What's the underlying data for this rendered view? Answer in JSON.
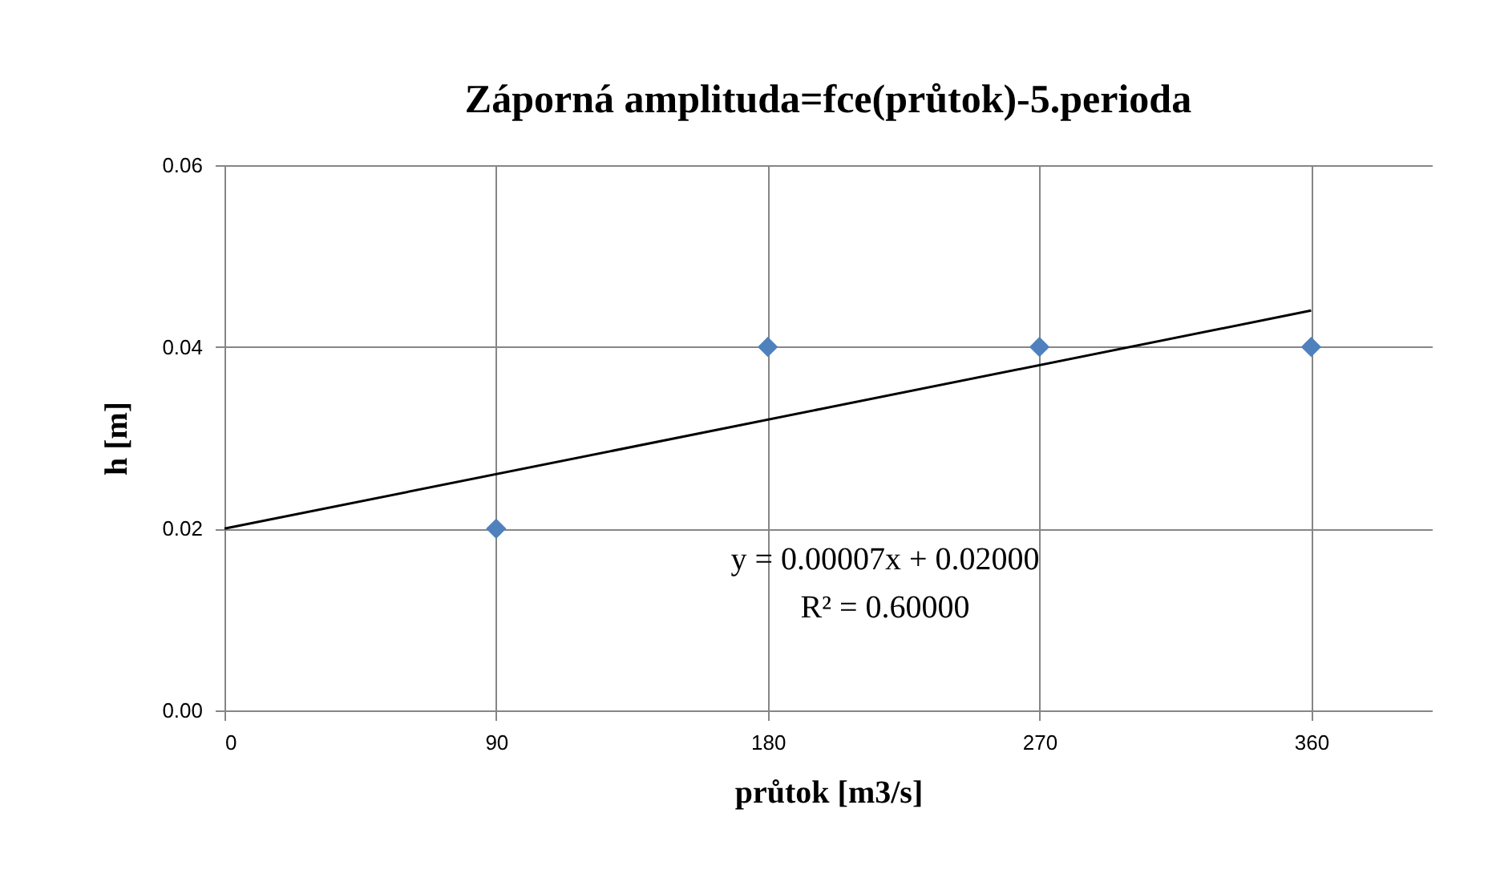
{
  "chart_data": {
    "type": "scatter",
    "title": "Záporná amplituda=fce(průtok)-5.perioda",
    "xlabel": "průtok [m3/s]",
    "ylabel": "h [m]",
    "xlim": [
      0,
      400
    ],
    "xticks": [
      0,
      90,
      180,
      270,
      360
    ],
    "ylim": [
      0,
      0.06
    ],
    "yticks": [
      {
        "value": 0,
        "label": "0.00"
      },
      {
        "value": 0.02,
        "label": "0.02"
      },
      {
        "value": 0.04,
        "label": "0.04"
      },
      {
        "value": 0.06,
        "label": "0.06"
      }
    ],
    "grid": true,
    "series": [
      {
        "marker": "diamond",
        "color": "#4f81bd",
        "x": [
          90,
          180,
          270,
          360
        ],
        "values": [
          0.02,
          0.04,
          0.04,
          0.04
        ]
      },
      {
        "type": "line",
        "marker": "none",
        "color": "#000000",
        "x": [
          0,
          360
        ],
        "values": [
          0.02,
          0.044
        ]
      }
    ],
    "annotations": [
      "y = 0.00007x + 0.02000",
      "R² = 0.60000"
    ]
  }
}
